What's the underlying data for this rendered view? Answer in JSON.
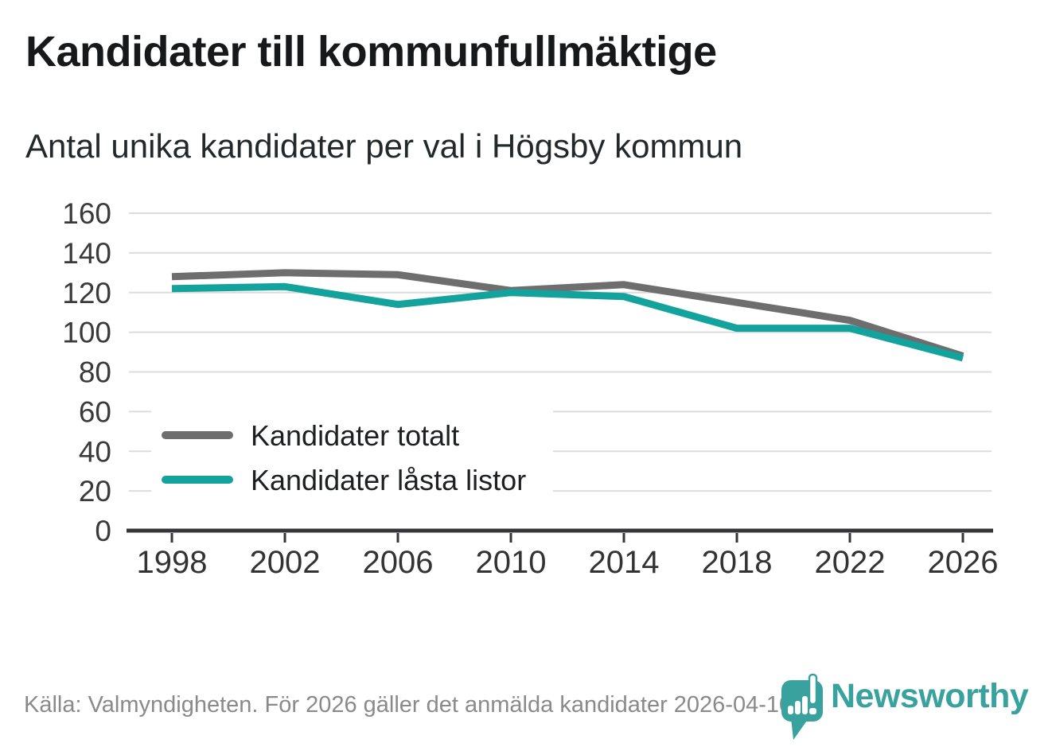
{
  "header": {
    "title": "Kandidater till kommunfullmäktige",
    "subtitle": "Antal unika kandidater per val i Högsby kommun"
  },
  "chart_data": {
    "type": "line",
    "x": [
      "1998",
      "2002",
      "2006",
      "2010",
      "2014",
      "2018",
      "2022",
      "2026"
    ],
    "series": [
      {
        "name": "Kandidater totalt",
        "color": "#6e6e6e",
        "values": [
          128,
          130,
          129,
          121,
          124,
          115,
          106,
          88
        ]
      },
      {
        "name": "Kandidater låsta listor",
        "color": "#14a39c",
        "values": [
          122,
          123,
          114,
          120,
          118,
          102,
          102,
          87
        ]
      }
    ],
    "ylim": [
      0,
      160
    ],
    "ytick_step": 20,
    "grid": true,
    "legend_position": "inside-bottom-left"
  },
  "footer": {
    "source": "Källa: Valmyndigheten. För 2026 gäller det anmälda kandidater 2026-04-10.",
    "brand": "Newsworthy"
  },
  "colors": {
    "series_total": "#6e6e6e",
    "series_locked_lists": "#14a39c",
    "brand_teal": "#3aa29e",
    "grid": "#dcdcdc",
    "axis": "#35363a",
    "text": "#1d1f21",
    "muted_text": "#8a8a8a"
  }
}
